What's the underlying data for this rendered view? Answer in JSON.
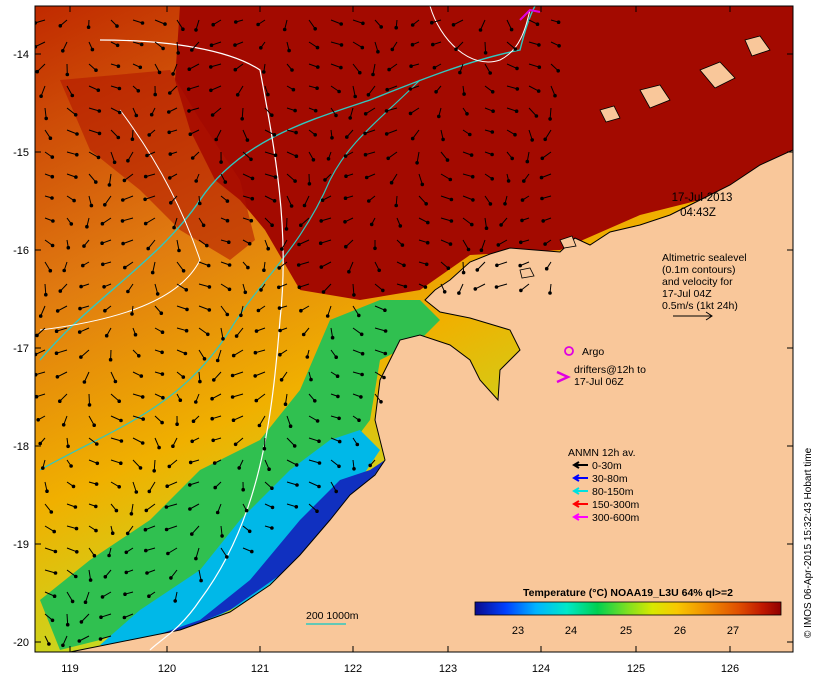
{
  "map": {
    "lon_ticks": [
      "119",
      "120",
      "121",
      "122",
      "123",
      "124",
      "125",
      "126"
    ],
    "lat_ticks": [
      "-14",
      "-15",
      "-16",
      "-17",
      "-18",
      "-19",
      "-20"
    ],
    "datetime": {
      "date": "17-Jul-2013",
      "time": "04:43Z"
    },
    "altimetry_note": [
      "Altimetric sealevel",
      "(0.1m contours)",
      "and velocity for",
      "17-Jul 04Z",
      "0.5m/s (1kt 24h)"
    ],
    "argo_label": "Argo",
    "drifters_label": [
      "drifters@12h to",
      "17-Jul 06Z"
    ],
    "anmn": {
      "title": "ANMN 12h av.",
      "items": [
        {
          "label": "0-30m",
          "color": "#000000"
        },
        {
          "label": "30-80m",
          "color": "#0000ff"
        },
        {
          "label": "80-150m",
          "color": "#00e0e0"
        },
        {
          "label": "150-300m",
          "color": "#ff0000"
        },
        {
          "label": "300-600m",
          "color": "#ff00ff"
        }
      ]
    },
    "isobath_label": "200 1000m",
    "colorbar": {
      "title": "Temperature (°C) NOAA19_L3U 64% ql>=2",
      "ticks": [
        "23",
        "24",
        "25",
        "26",
        "27"
      ],
      "colors": [
        "#0a0a8c",
        "#0040ff",
        "#00b4ff",
        "#00e8c8",
        "#00d050",
        "#80e020",
        "#d8e800",
        "#f8c800",
        "#f08c00",
        "#e05000",
        "#c01800",
        "#900000"
      ]
    },
    "credit": "© IMOS 06-Apr-2015 15:32:43 Hobart time",
    "palette": {
      "land": "#f9c79a",
      "warm": "#a30a00",
      "mid": "#e08a10",
      "cool": "#1a8fd0",
      "coast": "#000000"
    }
  }
}
